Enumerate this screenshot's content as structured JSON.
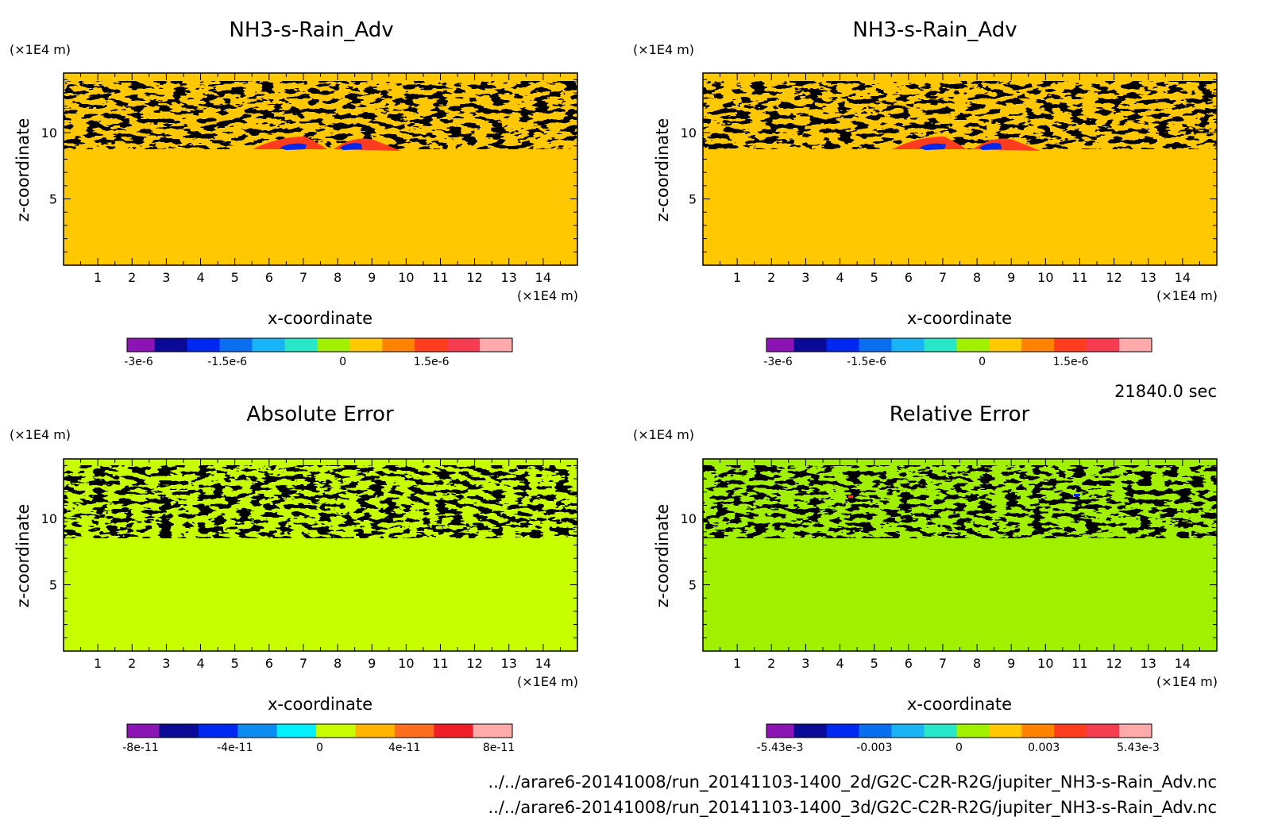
{
  "chart_data": [
    {
      "type": "heatmap",
      "title": "NH3-s-Rain_Adv",
      "xlabel": "x-coordinate",
      "ylabel": "z-coordinate",
      "x_unit": "(×1E4 m)",
      "y_unit": "(×1E4 m)",
      "xlim": [
        0,
        15
      ],
      "ylim": [
        0,
        14.5
      ],
      "x_ticks": [
        "1",
        "2",
        "3",
        "4",
        "5",
        "6",
        "7",
        "8",
        "9",
        "10",
        "11",
        "12",
        "13",
        "14"
      ],
      "y_ticks": [
        "5",
        "10"
      ],
      "background_color": "#ffc800",
      "colorbar": {
        "colors": [
          "#8c14b4",
          "#0a0a96",
          "#0028f0",
          "#0a6ef0",
          "#18b4f5",
          "#28e6c8",
          "#a0f000",
          "#ffc800",
          "#ff8200",
          "#ff3c1e",
          "#f53c50",
          "#ffaaaa"
        ],
        "labels": [
          "-3e-6",
          "-1.5e-6",
          "0",
          "1.5e-6"
        ]
      }
    },
    {
      "type": "heatmap",
      "title": "NH3-s-Rain_Adv",
      "xlabel": "x-coordinate",
      "ylabel": "z-coordinate",
      "x_unit": "(×1E4 m)",
      "y_unit": "(×1E4 m)",
      "xlim": [
        0,
        15
      ],
      "ylim": [
        0,
        14.5
      ],
      "x_ticks": [
        "1",
        "2",
        "3",
        "4",
        "5",
        "6",
        "7",
        "8",
        "9",
        "10",
        "11",
        "12",
        "13",
        "14"
      ],
      "y_ticks": [
        "5",
        "10"
      ],
      "background_color": "#ffc800",
      "colorbar": {
        "colors": [
          "#8c14b4",
          "#0a0a96",
          "#0028f0",
          "#0a6ef0",
          "#18b4f5",
          "#28e6c8",
          "#a0f000",
          "#ffc800",
          "#ff8200",
          "#ff3c1e",
          "#f53c50",
          "#ffaaaa"
        ],
        "labels": [
          "-3e-6",
          "-1.5e-6",
          "0",
          "1.5e-6"
        ]
      }
    },
    {
      "type": "heatmap",
      "title": "Absolute Error",
      "xlabel": "x-coordinate",
      "ylabel": "z-coordinate",
      "x_unit": "(×1E4 m)",
      "y_unit": "(×1E4 m)",
      "xlim": [
        0,
        15
      ],
      "ylim": [
        0,
        14.5
      ],
      "x_ticks": [
        "1",
        "2",
        "3",
        "4",
        "5",
        "6",
        "7",
        "8",
        "9",
        "10",
        "11",
        "12",
        "13",
        "14"
      ],
      "y_ticks": [
        "5",
        "10"
      ],
      "background_color": "#c8ff00",
      "colorbar": {
        "colors": [
          "#8c14b4",
          "#0a0a96",
          "#0028f0",
          "#0a8cf0",
          "#00f0ff",
          "#c8ff00",
          "#ffb400",
          "#ff6e1e",
          "#f01e28",
          "#ffaaaa"
        ],
        "labels": [
          "-8e-11",
          "-4e-11",
          "0",
          "4e-11",
          "8e-11"
        ]
      }
    },
    {
      "type": "heatmap",
      "title": "Relative Error",
      "xlabel": "x-coordinate",
      "ylabel": "z-coordinate",
      "x_unit": "(×1E4 m)",
      "y_unit": "(×1E4 m)",
      "xlim": [
        0,
        15
      ],
      "ylim": [
        0,
        14.5
      ],
      "x_ticks": [
        "1",
        "2",
        "3",
        "4",
        "5",
        "6",
        "7",
        "8",
        "9",
        "10",
        "11",
        "12",
        "13",
        "14"
      ],
      "y_ticks": [
        "5",
        "10"
      ],
      "background_color": "#a0f000",
      "colorbar": {
        "colors": [
          "#8c14b4",
          "#0a0a96",
          "#0028f0",
          "#0a6ef0",
          "#18b4f5",
          "#28e6c8",
          "#a0f000",
          "#ffc800",
          "#ff8200",
          "#ff3c1e",
          "#f53c50",
          "#ffaaaa"
        ],
        "labels": [
          "-5.43e-3",
          "-0.003",
          "0",
          "0.003",
          "5.43e-3"
        ]
      }
    }
  ],
  "time_label": "21840.0 sec",
  "footer_lines": [
    "../../arare6-20141008/run_20141103-1400_2d/G2C-C2R-R2G/jupiter_NH3-s-Rain_Adv.nc",
    "../../arare6-20141008/run_20141103-1400_3d/G2C-C2R-R2G/jupiter_NH3-s-Rain_Adv.nc"
  ]
}
